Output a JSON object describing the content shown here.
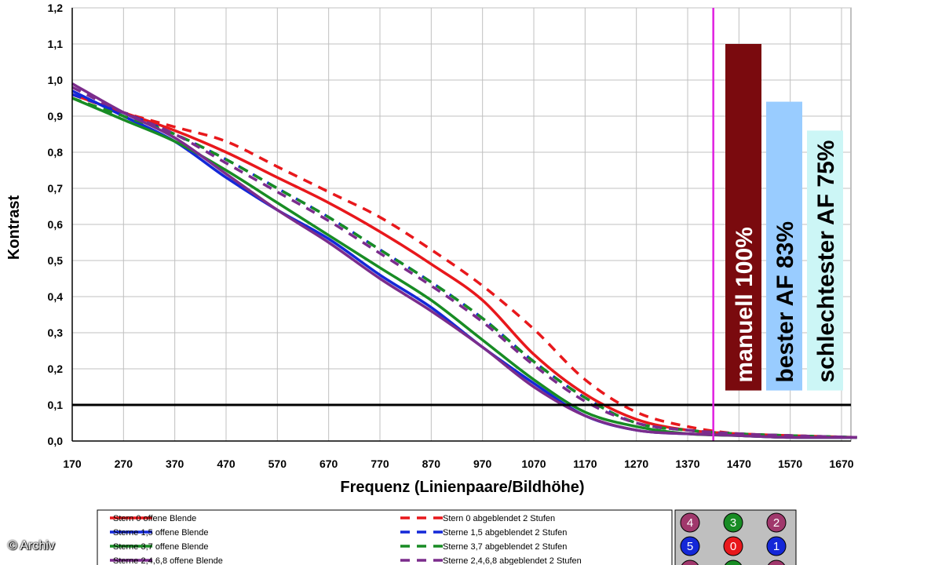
{
  "chart_data": {
    "type": "line",
    "xlabel": "Frequenz (Linienpaare/Bildhöhe)",
    "ylabel": "Kontrast",
    "xlim": [
      170,
      1700
    ],
    "ylim": [
      0,
      1.2
    ],
    "xticks": [
      "170",
      "270",
      "370",
      "470",
      "570",
      "670",
      "770",
      "870",
      "970",
      "1070",
      "1170",
      "1270",
      "1370",
      "1470",
      "1570",
      "1670"
    ],
    "yticks": [
      "0,0",
      "0,1",
      "0,2",
      "0,3",
      "0,4",
      "0,5",
      "0,6",
      "0,7",
      "0,8",
      "0,9",
      "1,0",
      "1,1",
      "1,2"
    ],
    "grid": true,
    "threshold_line": 0.1,
    "marker_line_x": 1420,
    "series": [
      {
        "name": "Stern 0 offene Blende",
        "color": "#e8181c",
        "dash": false,
        "x": [
          170,
          270,
          370,
          470,
          570,
          670,
          770,
          870,
          970,
          1070,
          1170,
          1270,
          1370,
          1470,
          1570,
          1700
        ],
        "y": [
          0.96,
          0.91,
          0.86,
          0.8,
          0.73,
          0.66,
          0.58,
          0.49,
          0.39,
          0.24,
          0.13,
          0.06,
          0.03,
          0.02,
          0.015,
          0.01
        ]
      },
      {
        "name": "Stern 0 abgeblendet 2 Stufen",
        "color": "#e8181c",
        "dash": true,
        "x": [
          170,
          270,
          370,
          470,
          570,
          670,
          770,
          870,
          970,
          1070,
          1170,
          1270,
          1370,
          1470,
          1570,
          1700
        ],
        "y": [
          0.96,
          0.91,
          0.87,
          0.83,
          0.76,
          0.69,
          0.62,
          0.53,
          0.43,
          0.31,
          0.17,
          0.08,
          0.04,
          0.02,
          0.015,
          0.01
        ]
      },
      {
        "name": "Sterne 1,5 offene Blende",
        "color": "#1428d8",
        "dash": false,
        "x": [
          170,
          270,
          370,
          470,
          570,
          670,
          770,
          870,
          970,
          1070,
          1170,
          1270,
          1370,
          1470,
          1570,
          1700
        ],
        "y": [
          0.97,
          0.9,
          0.83,
          0.73,
          0.64,
          0.56,
          0.46,
          0.37,
          0.26,
          0.16,
          0.07,
          0.03,
          0.02,
          0.015,
          0.01,
          0.01
        ]
      },
      {
        "name": "Sterne 1,5 abgeblendet 2 Stufen",
        "color": "#1428d8",
        "dash": true,
        "x": [
          170,
          270,
          370,
          470,
          570,
          670,
          770,
          870,
          970,
          1070,
          1170,
          1270,
          1370,
          1470,
          1570,
          1700
        ],
        "y": [
          0.96,
          0.91,
          0.85,
          0.78,
          0.7,
          0.62,
          0.53,
          0.44,
          0.34,
          0.22,
          0.12,
          0.05,
          0.03,
          0.02,
          0.015,
          0.01
        ]
      },
      {
        "name": "Sterne 3,7 offene Blende",
        "color": "#188c24",
        "dash": false,
        "x": [
          170,
          270,
          370,
          470,
          570,
          670,
          770,
          870,
          970,
          1070,
          1170,
          1270,
          1370,
          1470,
          1570,
          1700
        ],
        "y": [
          0.95,
          0.89,
          0.83,
          0.75,
          0.66,
          0.57,
          0.48,
          0.39,
          0.28,
          0.17,
          0.08,
          0.04,
          0.02,
          0.015,
          0.01,
          0.01
        ]
      },
      {
        "name": "Sterne 3,7 abgeblendet 2 Stufen",
        "color": "#188c24",
        "dash": true,
        "x": [
          170,
          270,
          370,
          470,
          570,
          670,
          770,
          870,
          970,
          1070,
          1170,
          1270,
          1370,
          1470,
          1570,
          1700
        ],
        "y": [
          0.95,
          0.9,
          0.85,
          0.78,
          0.7,
          0.62,
          0.53,
          0.44,
          0.34,
          0.22,
          0.12,
          0.05,
          0.03,
          0.02,
          0.015,
          0.01
        ]
      },
      {
        "name": "Sterne 2,4,6,8 offene Blende",
        "color": "#7b2c8c",
        "dash": false,
        "x": [
          170,
          270,
          370,
          470,
          570,
          670,
          770,
          870,
          970,
          1070,
          1170,
          1270,
          1370,
          1470,
          1570,
          1700
        ],
        "y": [
          0.99,
          0.91,
          0.84,
          0.74,
          0.64,
          0.55,
          0.45,
          0.36,
          0.26,
          0.15,
          0.07,
          0.03,
          0.02,
          0.015,
          0.01,
          0.01
        ]
      },
      {
        "name": "Sterne 2,4,6,8 abgeblendet 2 Stufen",
        "color": "#7b2c8c",
        "dash": true,
        "x": [
          170,
          270,
          370,
          470,
          570,
          670,
          770,
          870,
          970,
          1070,
          1170,
          1270,
          1370,
          1470,
          1570,
          1700
        ],
        "y": [
          0.98,
          0.91,
          0.85,
          0.77,
          0.69,
          0.61,
          0.52,
          0.43,
          0.33,
          0.21,
          0.11,
          0.05,
          0.03,
          0.02,
          0.015,
          0.01
        ]
      }
    ],
    "bars": [
      {
        "label": "manuell 100%",
        "value": 1.1,
        "color": "#7a0a0e",
        "text_color": "#ffffff"
      },
      {
        "label": "bester AF 83%",
        "value": 0.94,
        "color": "#99ccff",
        "text_color": "#000000"
      },
      {
        "label": "schlechtester AF 75%",
        "value": 0.86,
        "color": "#ccf6f6",
        "text_color": "#000000"
      }
    ],
    "legend": {
      "placement": "bottom"
    },
    "star_grid": [
      {
        "label": "4",
        "color": "#a0386c"
      },
      {
        "label": "3",
        "color": "#188c24"
      },
      {
        "label": "2",
        "color": "#a0386c"
      },
      {
        "label": "5",
        "color": "#1428d8"
      },
      {
        "label": "0",
        "color": "#e8181c"
      },
      {
        "label": "1",
        "color": "#1428d8"
      },
      {
        "label": "",
        "color": "#a0386c"
      },
      {
        "label": "",
        "color": "#188c24"
      },
      {
        "label": "",
        "color": "#a0386c"
      }
    ]
  },
  "copyright": "© Archiv"
}
